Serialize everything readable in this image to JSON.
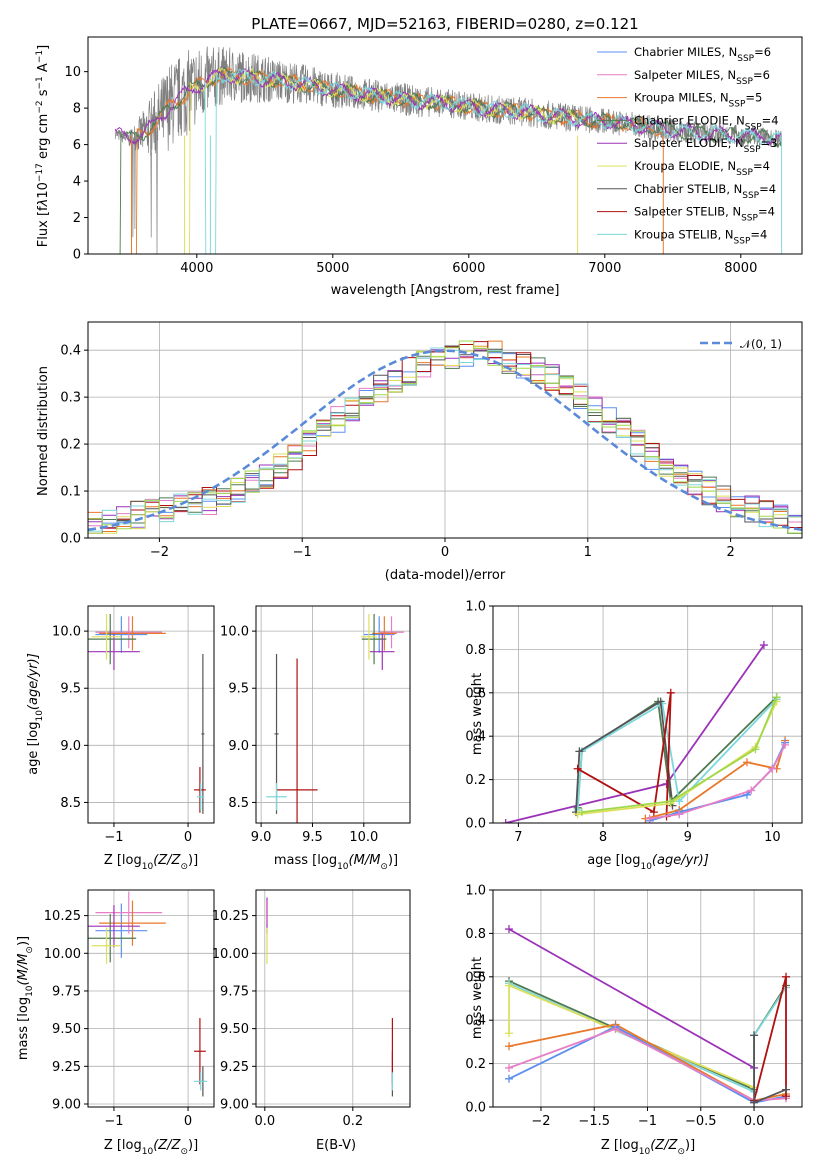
{
  "palette": {
    "Chabrier MILES": "#5b8ff0",
    "Salpeter MILES": "#e67fc6",
    "Kroupa MILES": "#e8782a",
    "Chabrier ELODIE": "#4f7a50",
    "Salpeter ELODIE": "#9b32b8",
    "Kroupa ELODIE": "#dde05c",
    "Chabrier STELIB": "#555555",
    "Salpeter STELIB": "#b01010",
    "Kroupa STELIB": "#7dd8dc",
    "extra_lime": "#9fd84a",
    "norm_curve": "#5b8ad8",
    "observed": "#808080"
  },
  "chart_data": [
    {
      "id": "spectrum",
      "type": "line",
      "title": "PLATE=0667, MJD=52163, FIBERID=0280, z=0.121",
      "xlabel": "wavelength [Angstrom, rest frame]",
      "ylabel_parts": [
        "Flux [f",
        "λ",
        "10",
        "−17",
        " erg cm",
        "−2",
        " s",
        "−1",
        " A",
        "−1",
        "]"
      ],
      "xlim": [
        3200,
        8450
      ],
      "ylim": [
        0,
        11.9
      ],
      "xticks": [
        4000,
        5000,
        6000,
        7000,
        8000
      ],
      "yticks": [
        0,
        2,
        4,
        6,
        8,
        10
      ],
      "legend_position": "top-right",
      "legend": [
        {
          "name": "Chabrier MILES, N",
          "sub": "SSP",
          "val": "=6",
          "color_key": "Chabrier MILES"
        },
        {
          "name": "Salpeter MILES, N",
          "sub": "SSP",
          "val": "=6",
          "color_key": "Salpeter MILES"
        },
        {
          "name": "Kroupa MILES, N",
          "sub": "SSP",
          "val": "=5",
          "color_key": "Kroupa MILES"
        },
        {
          "name": "Chabrier ELODIE, N",
          "sub": "SSP",
          "val": "=4",
          "color_key": "Chabrier ELODIE"
        },
        {
          "name": "Salpeter ELODIE, N",
          "sub": "SSP",
          "val": "=3",
          "color_key": "Salpeter ELODIE"
        },
        {
          "name": "Kroupa ELODIE, N",
          "sub": "SSP",
          "val": "=4",
          "color_key": "Kroupa ELODIE"
        },
        {
          "name": "Chabrier STELIB, N",
          "sub": "SSP",
          "val": "=4",
          "color_key": "Chabrier STELIB"
        },
        {
          "name": "Salpeter STELIB, N",
          "sub": "SSP",
          "val": "=4",
          "color_key": "Salpeter STELIB"
        },
        {
          "name": "Kroupa STELIB, N",
          "sub": "SSP",
          "val": "=4",
          "color_key": "Kroupa STELIB"
        }
      ],
      "observed_envelope": {
        "x": [
          3400,
          3500,
          3600,
          3700,
          3800,
          3900,
          4000,
          4100,
          4200,
          4400,
          4600,
          4800,
          5000,
          5200,
          5400,
          5600,
          5800,
          6000,
          6200,
          6400,
          6600,
          6800,
          7000,
          7200,
          7400,
          7600,
          7800,
          8000,
          8200,
          8300
        ],
        "y": [
          6.6,
          6.3,
          6.6,
          7.2,
          8.1,
          8.7,
          9.2,
          9.6,
          9.8,
          9.7,
          9.5,
          9.3,
          9.0,
          8.8,
          8.6,
          8.4,
          8.3,
          8.1,
          7.9,
          7.8,
          7.6,
          7.4,
          7.3,
          7.1,
          6.9,
          6.7,
          6.6,
          6.5,
          6.4,
          6.3
        ],
        "noise": [
          0.3,
          0.4,
          1.2,
          2.0,
          2.4,
          2.4,
          2.2,
          1.8,
          1.6,
          1.4,
          1.2,
          1.1,
          1.0,
          0.9,
          0.9,
          0.9,
          0.8,
          0.8,
          0.8,
          0.8,
          0.8,
          0.8,
          0.7,
          0.7,
          0.7,
          0.6,
          0.6,
          0.6,
          0.5,
          0.5
        ]
      },
      "model_cutoffs": [
        {
          "color_key": "Kroupa MILES",
          "x_start": 3520,
          "x_end": 7430
        },
        {
          "color_key": "Kroupa ELODIE",
          "x_start": 3910,
          "x_end": 6800
        },
        {
          "color_key": "Kroupa STELIB",
          "x_start": 4100,
          "x_end": 8300
        }
      ]
    },
    {
      "id": "residuals",
      "type": "step",
      "xlabel": "(data-model)/error",
      "ylabel": "Normed distribution",
      "xlim": [
        -2.5,
        2.5
      ],
      "ylim": [
        0,
        0.46
      ],
      "xticks": [
        -2,
        -1,
        0,
        1,
        2
      ],
      "yticks": [
        0.0,
        0.1,
        0.2,
        0.3,
        0.4
      ],
      "grid": true,
      "legend_position": "top-right",
      "legend_label": "𝒩(0, 1)",
      "bin_width": 0.1,
      "bin_start": -2.5,
      "base_hist": [
        0.03,
        0.035,
        0.045,
        0.05,
        0.055,
        0.06,
        0.065,
        0.075,
        0.08,
        0.085,
        0.1,
        0.12,
        0.135,
        0.155,
        0.175,
        0.2,
        0.225,
        0.25,
        0.27,
        0.3,
        0.32,
        0.34,
        0.355,
        0.37,
        0.38,
        0.39,
        0.395,
        0.4,
        0.39,
        0.38,
        0.37,
        0.355,
        0.34,
        0.32,
        0.3,
        0.275,
        0.25,
        0.225,
        0.2,
        0.175,
        0.155,
        0.135,
        0.115,
        0.1,
        0.085,
        0.07,
        0.06,
        0.05,
        0.04,
        0.03
      ]
    },
    {
      "id": "age_vs_Z",
      "type": "errorbar",
      "xlabel_parts": [
        "Z [log",
        "10",
        "(Z/Z",
        "⊙",
        ")]"
      ],
      "ylabel_parts": [
        "age  [log",
        "10",
        "(age/yr)]"
      ],
      "xlim": [
        -1.35,
        0.35
      ],
      "ylim": [
        8.32,
        10.22
      ],
      "xticks": [
        -1,
        0
      ],
      "yticks": [
        8.5,
        9.0,
        9.5,
        10.0
      ],
      "points": [
        {
          "c": "Chabrier MILES",
          "x": -0.9,
          "y": 9.97,
          "xe": 0.35,
          "ye": 0.16
        },
        {
          "c": "Salpeter MILES",
          "x": -0.8,
          "y": 9.99,
          "xe": 0.45,
          "ye": 0.14
        },
        {
          "c": "Kroupa MILES",
          "x": -0.75,
          "y": 9.98,
          "xe": 0.45,
          "ye": 0.15
        },
        {
          "c": "Chabrier ELODIE",
          "x": -1.05,
          "y": 9.93,
          "xe": 0.35,
          "ye": 0.22
        },
        {
          "c": "Salpeter ELODIE",
          "x": -1.0,
          "y": 9.82,
          "xe": 0.35,
          "ye": 0.16
        },
        {
          "c": "Kroupa ELODIE",
          "x": -1.1,
          "y": 9.95,
          "xe": 0.2,
          "ye": 0.2
        },
        {
          "c": "Chabrier STELIB",
          "x": 0.2,
          "y": 9.1,
          "xe": 0.02,
          "ye": 0.7
        },
        {
          "c": "Salpeter STELIB",
          "x": 0.16,
          "y": 8.61,
          "xe": 0.08,
          "ye": 0.2
        },
        {
          "c": "Kroupa STELIB",
          "x": 0.17,
          "y": 8.55,
          "xe": 0.05,
          "ye": 0.12
        }
      ]
    },
    {
      "id": "age_vs_mass",
      "type": "errorbar",
      "xlabel_parts": [
        "mass [log",
        "10",
        "(M/M",
        "⊙",
        ")]"
      ],
      "xlim": [
        8.95,
        10.45
      ],
      "ylim": [
        8.32,
        10.22
      ],
      "xticks": [
        9.0,
        9.5,
        10.0
      ],
      "yticks": [
        8.5,
        9.0,
        9.5,
        10.0
      ],
      "points": [
        {
          "c": "Chabrier MILES",
          "x": 10.15,
          "y": 9.97,
          "xe": 0.15,
          "ye": 0.16
        },
        {
          "c": "Salpeter MILES",
          "x": 10.27,
          "y": 9.99,
          "xe": 0.12,
          "ye": 0.14
        },
        {
          "c": "Kroupa MILES",
          "x": 10.2,
          "y": 9.98,
          "xe": 0.12,
          "ye": 0.15
        },
        {
          "c": "Chabrier ELODIE",
          "x": 10.1,
          "y": 9.93,
          "xe": 0.12,
          "ye": 0.22
        },
        {
          "c": "Salpeter ELODIE",
          "x": 10.18,
          "y": 9.82,
          "xe": 0.12,
          "ye": 0.16
        },
        {
          "c": "Kroupa ELODIE",
          "x": 10.05,
          "y": 9.95,
          "xe": 0.08,
          "ye": 0.2
        },
        {
          "c": "Chabrier STELIB",
          "x": 9.15,
          "y": 9.1,
          "xe": 0.02,
          "ye": 0.7
        },
        {
          "c": "Salpeter STELIB",
          "x": 9.35,
          "y": 8.61,
          "xe": 0.2,
          "ye": 1.15
        },
        {
          "c": "Kroupa STELIB",
          "x": 9.15,
          "y": 8.55,
          "xe": 0.1,
          "ye": 0.12
        }
      ]
    },
    {
      "id": "massweight_vs_age",
      "type": "line",
      "xlabel_parts": [
        "age  [log",
        "10",
        "(age/yr)]"
      ],
      "ylabel": "mass weight",
      "xlim": [
        6.7,
        10.35
      ],
      "ylim": [
        0,
        1.0
      ],
      "xticks": [
        7,
        8,
        9,
        10
      ],
      "yticks": [
        0.0,
        0.2,
        0.4,
        0.6,
        0.8,
        1.0
      ],
      "series": [
        {
          "c": "Salpeter ELODIE",
          "x": [
            6.85,
            8.75,
            9.9
          ],
          "y": [
            0.0,
            0.18,
            0.82
          ]
        },
        {
          "c": "Chabrier ELODIE",
          "x": [
            7.7,
            7.75,
            8.65,
            8.8,
            10.05
          ],
          "y": [
            0.07,
            0.33,
            0.56,
            0.1,
            0.58
          ]
        },
        {
          "c": "Kroupa STELIB",
          "x": [
            7.7,
            7.75,
            8.7,
            8.9,
            10.05
          ],
          "y": [
            0.06,
            0.33,
            0.55,
            0.1,
            0.57
          ]
        },
        {
          "c": "Chabrier STELIB",
          "x": [
            7.68,
            7.72,
            8.68,
            8.82
          ],
          "y": [
            0.05,
            0.33,
            0.56,
            0.08
          ]
        },
        {
          "c": "Salpeter STELIB",
          "x": [
            7.7,
            8.6,
            8.8,
            8.75
          ],
          "y": [
            0.25,
            0.05,
            0.6,
            0.03
          ]
        },
        {
          "c": "Kroupa ELODIE",
          "x": [
            7.7,
            8.8,
            9.8,
            10.05
          ],
          "y": [
            0.04,
            0.09,
            0.35,
            0.56
          ]
        },
        {
          "c": "extra_lime",
          "x": [
            7.75,
            8.8,
            9.8,
            10.05
          ],
          "y": [
            0.05,
            0.1,
            0.34,
            0.58
          ]
        },
        {
          "c": "Kroupa MILES",
          "x": [
            8.5,
            8.9,
            9.7,
            10.05,
            10.15
          ],
          "y": [
            0.02,
            0.06,
            0.28,
            0.25,
            0.38
          ]
        },
        {
          "c": "Chabrier MILES",
          "x": [
            8.55,
            8.9,
            9.7,
            10.0,
            10.15
          ],
          "y": [
            0.01,
            0.05,
            0.13,
            0.25,
            0.37
          ]
        },
        {
          "c": "Salpeter MILES",
          "x": [
            8.55,
            8.9,
            9.75,
            10.0,
            10.15
          ],
          "y": [
            0.02,
            0.04,
            0.15,
            0.25,
            0.36
          ]
        }
      ]
    },
    {
      "id": "mass_vs_Z",
      "type": "errorbar",
      "xlabel_parts": [
        "Z [log",
        "10",
        "(Z/Z",
        "⊙",
        ")]"
      ],
      "ylabel_parts": [
        "mass [log",
        "10",
        "(M/M",
        "⊙",
        ")]"
      ],
      "xlim": [
        -1.35,
        0.35
      ],
      "ylim": [
        8.98,
        10.42
      ],
      "xticks": [
        -1,
        0
      ],
      "yticks": [
        9.0,
        9.25,
        9.5,
        9.75,
        10.0,
        10.25
      ],
      "points": [
        {
          "c": "Chabrier MILES",
          "x": -0.9,
          "y": 10.15,
          "xe": 0.35,
          "ye": 0.18
        },
        {
          "c": "Salpeter MILES",
          "x": -0.8,
          "y": 10.27,
          "xe": 0.45,
          "ye": 0.14
        },
        {
          "c": "Kroupa MILES",
          "x": -0.75,
          "y": 10.2,
          "xe": 0.45,
          "ye": 0.15
        },
        {
          "c": "Chabrier ELODIE",
          "x": -1.05,
          "y": 10.1,
          "xe": 0.35,
          "ye": 0.16
        },
        {
          "c": "Salpeter ELODIE",
          "x": -1.0,
          "y": 10.18,
          "xe": 0.35,
          "ye": 0.14
        },
        {
          "c": "Kroupa ELODIE",
          "x": -1.1,
          "y": 10.05,
          "xe": 0.2,
          "ye": 0.12
        },
        {
          "c": "Chabrier STELIB",
          "x": 0.2,
          "y": 9.15,
          "xe": 0.02,
          "ye": 0.1
        },
        {
          "c": "Salpeter STELIB",
          "x": 0.16,
          "y": 9.35,
          "xe": 0.08,
          "ye": 0.22
        },
        {
          "c": "Kroupa STELIB",
          "x": 0.17,
          "y": 9.15,
          "xe": 0.09,
          "ye": 0.06
        }
      ]
    },
    {
      "id": "mass_vs_EBV",
      "type": "errorbar",
      "xlabel": "E(B-V)",
      "xlim": [
        -0.02,
        0.33
      ],
      "ylim": [
        8.98,
        10.42
      ],
      "xticks": [
        0.0,
        0.2
      ],
      "yticks": [
        9.0,
        9.25,
        9.5,
        9.75,
        10.0,
        10.25
      ],
      "points": [
        {
          "c": "Salpeter ELODIE",
          "x": 0.005,
          "y": 10.25,
          "xe": 0.0,
          "ye": 0.12
        },
        {
          "c": "Salpeter MILES",
          "x": 0.004,
          "y": 10.27,
          "xe": 0.0,
          "ye": 0.08
        },
        {
          "c": "Kroupa ELODIE",
          "x": 0.005,
          "y": 10.05,
          "xe": 0.0,
          "ye": 0.12
        },
        {
          "c": "Chabrier STELIB",
          "x": 0.29,
          "y": 9.2,
          "xe": 0.0,
          "ye": 0.15
        },
        {
          "c": "Salpeter STELIB",
          "x": 0.29,
          "y": 9.35,
          "xe": 0.0,
          "ye": 0.22
        },
        {
          "c": "Kroupa STELIB",
          "x": 0.29,
          "y": 9.15,
          "xe": 0.0,
          "ye": 0.06
        }
      ]
    },
    {
      "id": "massweight_vs_Z",
      "type": "line",
      "xlabel_parts": [
        "Z [log",
        "10",
        "(Z/Z",
        "⊙",
        ")]"
      ],
      "ylabel": "mass weight",
      "xlim": [
        -2.45,
        0.45
      ],
      "ylim": [
        0,
        1.0
      ],
      "xticks": [
        -2.0,
        -1.5,
        -1.0,
        -0.5,
        0.0
      ],
      "yticks": [
        0.0,
        0.2,
        0.4,
        0.6,
        0.8,
        1.0
      ],
      "series": [
        {
          "c": "Salpeter ELODIE",
          "x": [
            -2.3,
            0.0
          ],
          "y": [
            0.82,
            0.18
          ]
        },
        {
          "c": "Chabrier ELODIE",
          "x": [
            -2.3,
            0.0,
            0.0,
            0.3
          ],
          "y": [
            0.58,
            0.08,
            0.33,
            0.56
          ]
        },
        {
          "c": "Kroupa STELIB",
          "x": [
            -2.3,
            0.0,
            0.0,
            0.3
          ],
          "y": [
            0.57,
            0.07,
            0.33,
            0.55
          ]
        },
        {
          "c": "Kroupa ELODIE",
          "x": [
            -2.3,
            -2.3,
            0.0
          ],
          "y": [
            0.34,
            0.56,
            0.09
          ]
        },
        {
          "c": "Kroupa MILES",
          "x": [
            -2.3,
            -1.3,
            0.0,
            0.3
          ],
          "y": [
            0.28,
            0.38,
            0.03,
            0.06
          ]
        },
        {
          "c": "Chabrier MILES",
          "x": [
            -2.3,
            -1.3,
            0.0,
            0.3
          ],
          "y": [
            0.13,
            0.37,
            0.02,
            0.05
          ]
        },
        {
          "c": "Salpeter MILES",
          "x": [
            -2.3,
            -1.3,
            0.0,
            0.3
          ],
          "y": [
            0.18,
            0.36,
            0.03,
            0.04
          ]
        },
        {
          "c": "Salpeter STELIB",
          "x": [
            0.0,
            0.3,
            0.3
          ],
          "y": [
            0.03,
            0.6,
            0.05
          ]
        },
        {
          "c": "Chabrier STELIB",
          "x": [
            0.0,
            0.0,
            0.3
          ],
          "y": [
            0.33,
            0.02,
            0.08
          ]
        }
      ]
    }
  ]
}
